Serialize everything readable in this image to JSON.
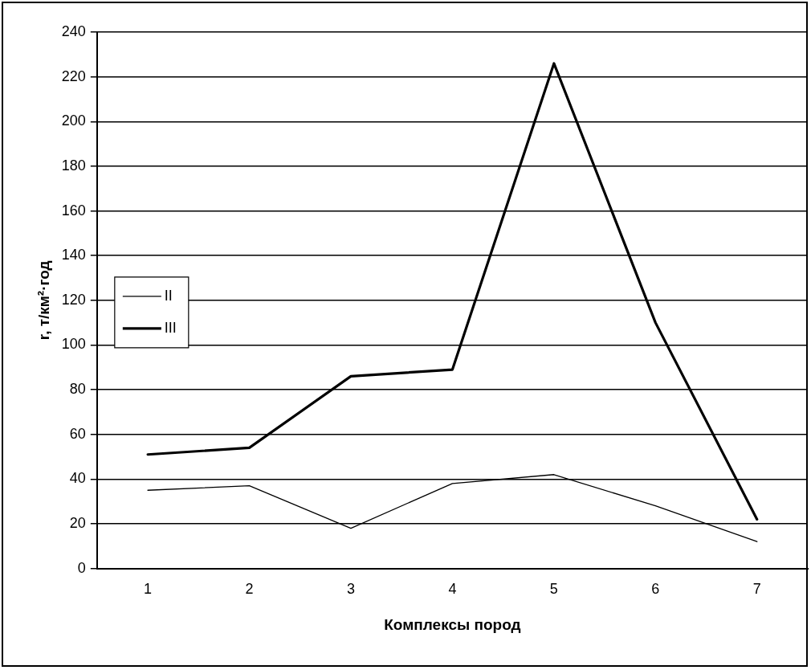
{
  "chart_data": {
    "type": "line",
    "xlabel": "Комплексы пород",
    "ylabel": "r, т/км²·год",
    "categories": [
      "1",
      "2",
      "3",
      "4",
      "5",
      "6",
      "7"
    ],
    "series": [
      {
        "name": "II",
        "color": "#000000",
        "values": [
          35,
          37,
          18,
          38,
          42,
          28,
          12
        ]
      },
      {
        "name": "III",
        "color": "#000000",
        "values": [
          51,
          54,
          86,
          89,
          226,
          110,
          22
        ]
      }
    ],
    "ylim": [
      0,
      240
    ],
    "yticks": [
      0,
      20,
      40,
      60,
      80,
      100,
      120,
      140,
      160,
      180,
      200,
      220,
      240
    ],
    "grid": "y",
    "legend": "left",
    "marker": "none",
    "line_style": "solid"
  }
}
